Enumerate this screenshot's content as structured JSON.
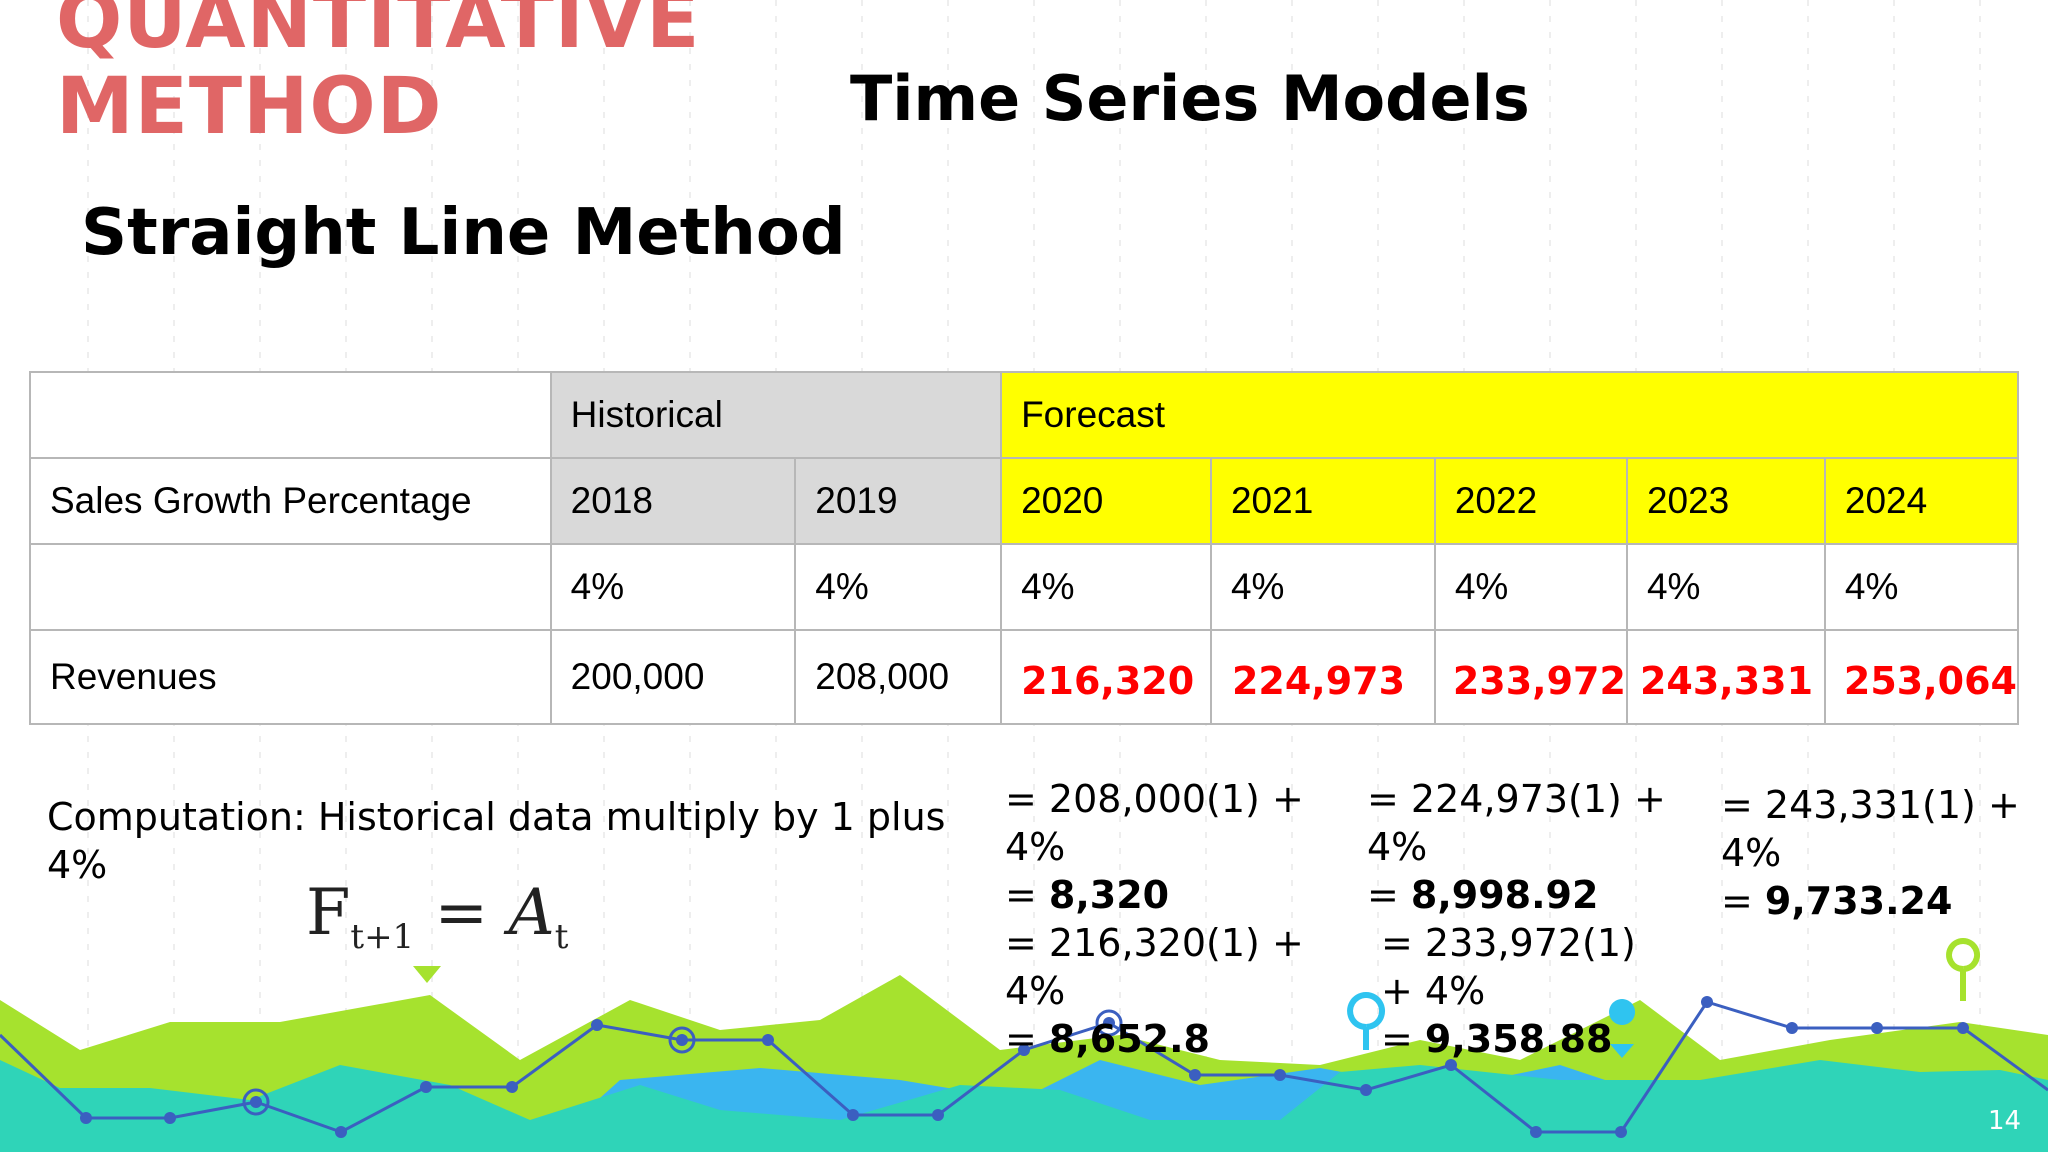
{
  "slide": {
    "title_line1": "QUANTITATIVE",
    "title_line2": "METHOD",
    "heading": "Time Series Models",
    "subheading": "Straight Line Method",
    "page_number": "14"
  },
  "table": {
    "group_headers": {
      "historical": "Historical",
      "forecast": "Forecast"
    },
    "row_label_years": "Sales Growth Percentage",
    "years": [
      "2018",
      "2019",
      "2020",
      "2021",
      "2022",
      "2023",
      "2024"
    ],
    "growth": [
      "4%",
      "4%",
      "4%",
      "4%",
      "4%",
      "4%",
      "4%"
    ],
    "row_label_revenue": "Revenues",
    "revenues": [
      "200,000",
      "208,000",
      "216,320",
      "224,973",
      "233,972",
      "243,331",
      "253,064"
    ]
  },
  "computation": {
    "text": "Computation: Historical data multiply by 1 plus 4%",
    "col1": {
      "eq1": "= 208,000(1) + 4%",
      "res1": "8,320",
      "eq2": "= 216,320(1) + 4%",
      "res2": "8,652.8"
    },
    "col2": {
      "eq1": "= 224,973(1) + 4%",
      "res1": "8,998.92",
      "eq2": "= 233,972(1) + 4%",
      "res2": "9,358.88"
    },
    "col3": {
      "eq1": "= 243,331(1) + 4%",
      "res1": "9,733.24"
    }
  },
  "formula": {
    "lhs": "F",
    "lhs_sub": "t+1",
    "equals": "=",
    "rhs": "A",
    "rhs_sub": "t"
  },
  "colors": {
    "title": "#e06666",
    "forecast_fill": "#ffff00",
    "historical_fill": "#d9d9d9",
    "forecast_values": "#ff0000",
    "wave_green": "#a6e22e",
    "wave_teal": "#2fd4b8",
    "wave_blue": "#3ab5f0",
    "line": "#3b5fc0"
  }
}
